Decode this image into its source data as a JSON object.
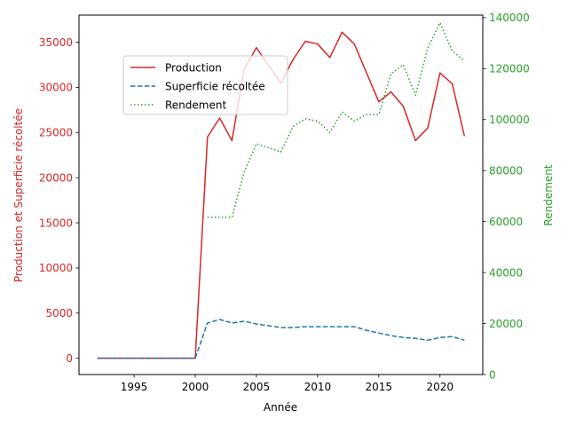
{
  "chart_data": {
    "type": "line",
    "title": "",
    "xlabel": "Année",
    "ylabel_left": "Production et Superficie récoltée",
    "ylabel_right": "Rendement",
    "xlim": [
      1990.5,
      2023.5
    ],
    "ylim_left": [
      -1800,
      38000
    ],
    "ylim_right": [
      0,
      141000
    ],
    "xticks": [
      1995,
      2000,
      2005,
      2010,
      2015,
      2020
    ],
    "yticks_left": [
      0,
      5000,
      10000,
      15000,
      20000,
      25000,
      30000,
      35000
    ],
    "yticks_right": [
      0,
      20000,
      40000,
      60000,
      80000,
      100000,
      120000,
      140000
    ],
    "grid": false,
    "legend_position": "upper-left",
    "x": [
      1992,
      1993,
      1994,
      1995,
      1996,
      1997,
      1998,
      1999,
      2000,
      2001,
      2002,
      2003,
      2004,
      2005,
      2006,
      2007,
      2008,
      2009,
      2010,
      2011,
      2012,
      2013,
      2014,
      2015,
      2016,
      2017,
      2018,
      2019,
      2020,
      2021,
      2022
    ],
    "series": [
      {
        "name": "Production",
        "axis": "left",
        "color": "#d62728",
        "dash": "solid",
        "values": [
          0,
          0,
          0,
          0,
          0,
          0,
          0,
          0,
          0,
          24500,
          26600,
          24100,
          32000,
          34400,
          32400,
          30500,
          33100,
          35100,
          34800,
          33300,
          36100,
          34800,
          31600,
          28400,
          29500,
          27900,
          24100,
          25500,
          31600,
          30400,
          24600
        ]
      },
      {
        "name": "Superficie récoltée",
        "axis": "left",
        "color": "#1f77b4",
        "dash": "dashed",
        "values": [
          0,
          0,
          0,
          0,
          0,
          0,
          0,
          0,
          0,
          3900,
          4300,
          3900,
          4100,
          3800,
          3600,
          3400,
          3400,
          3500,
          3500,
          3500,
          3500,
          3500,
          3100,
          2800,
          2500,
          2300,
          2200,
          2000,
          2300,
          2400,
          2000
        ]
      },
      {
        "name": "Rendement",
        "axis": "right",
        "color": "#2ca02c",
        "dash": "dotted",
        "values": [
          null,
          null,
          null,
          null,
          null,
          null,
          null,
          null,
          null,
          61700,
          61700,
          61700,
          79500,
          90500,
          89000,
          87300,
          97300,
          100300,
          99400,
          95000,
          103000,
          99400,
          102000,
          102000,
          118000,
          121500,
          109500,
          128000,
          138000,
          127000,
          123000
        ]
      }
    ]
  }
}
